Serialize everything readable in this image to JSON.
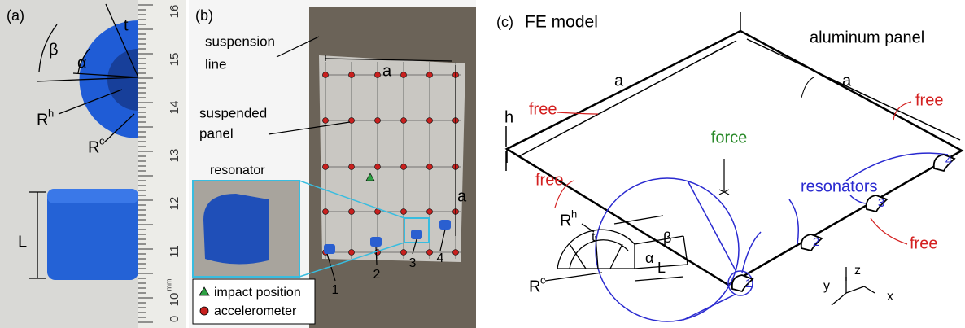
{
  "panel_a": {
    "label": "(a)",
    "beta": "β",
    "alpha": "α",
    "t": "t",
    "r_h": {
      "base": "R",
      "sup": "h"
    },
    "r_c": {
      "base": "R",
      "sup": "c"
    },
    "length": "L",
    "ruler": {
      "labels": [
        "16",
        "15",
        "14",
        "13",
        "12",
        "11",
        "10"
      ],
      "unit": "mm",
      "zero": "0"
    }
  },
  "panel_b": {
    "label": "(b)",
    "suspension_line": [
      "suspension",
      "line"
    ],
    "a_top": "a",
    "suspended_panel": [
      "suspended",
      "panel"
    ],
    "resonator": "resonator",
    "a_side": "a",
    "resonator_numbers": [
      "1",
      "2",
      "3",
      "4"
    ],
    "legend": [
      "impact position",
      "accelerometer"
    ]
  },
  "panel_c": {
    "label": "(c)",
    "title": "FE model",
    "aluminum_panel": "aluminum panel",
    "a_labels": [
      "a",
      "a"
    ],
    "free_labels": [
      "free",
      "free",
      "free",
      "free"
    ],
    "h": "h",
    "force": "force",
    "resonators": "resonators",
    "resonator_numbers": [
      "1",
      "2",
      "3",
      "4"
    ],
    "detail": {
      "r_h": {
        "base": "R",
        "sup": "h"
      },
      "t": "t",
      "alpha": "α",
      "beta": "β",
      "r_c": {
        "base": "R",
        "sup": "c"
      },
      "length": "L"
    },
    "axes": [
      "z",
      "y",
      "x"
    ]
  }
}
